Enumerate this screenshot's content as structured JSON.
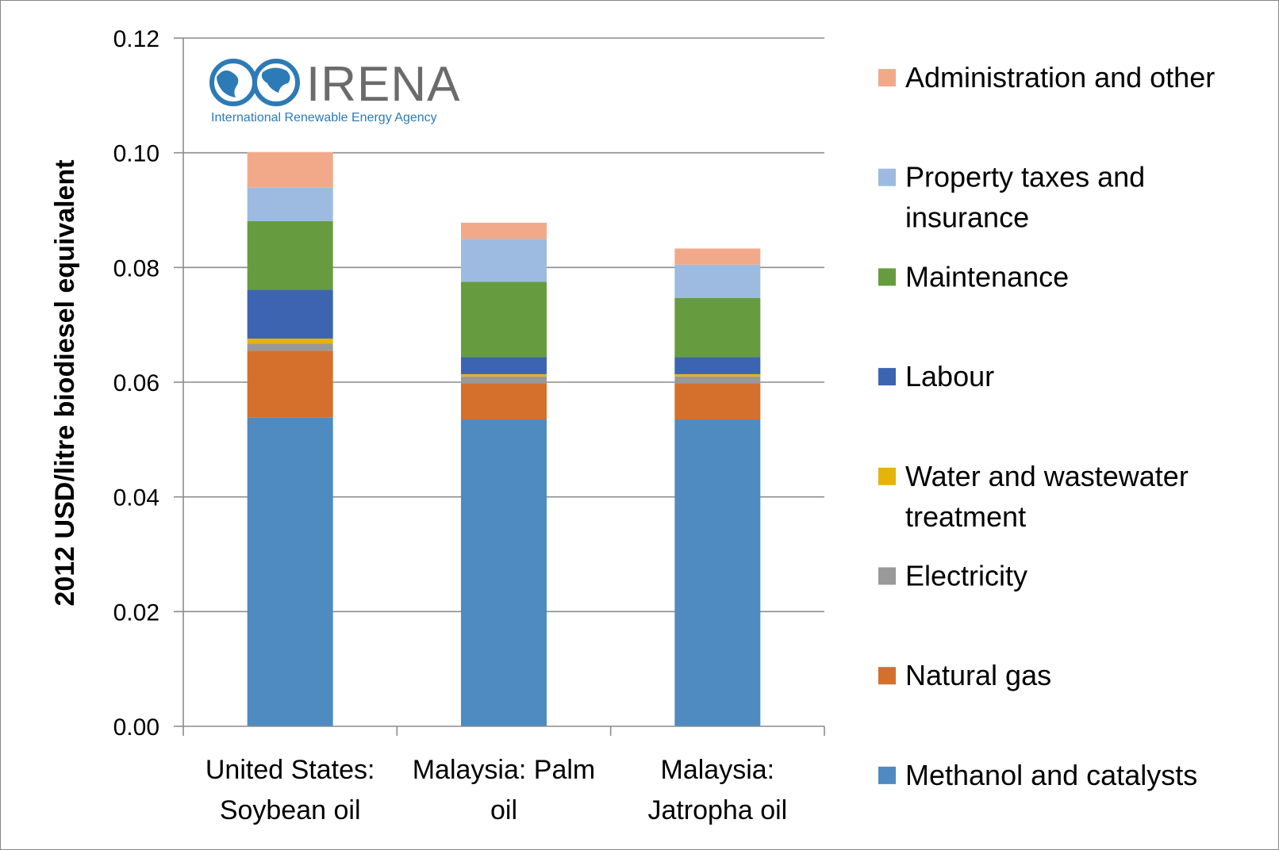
{
  "logo": {
    "name": "IRENA",
    "subtitle": "International Renewable Energy Agency",
    "color": "#2c7bb6"
  },
  "chart_data": {
    "type": "bar",
    "stacked": true,
    "title": "",
    "xlabel": "",
    "ylabel": "2012 USD/litre biodiesel equivalent",
    "ylim": [
      0,
      0.12
    ],
    "yticks": [
      "0.00",
      "0.02",
      "0.04",
      "0.06",
      "0.08",
      "0.10",
      "0.12"
    ],
    "grid": true,
    "legend_position": "right",
    "categories": [
      [
        "United States:",
        "Soybean oil"
      ],
      [
        "Malaysia: Palm",
        "oil"
      ],
      [
        "Malaysia:",
        "Jatropha oil"
      ]
    ],
    "series": [
      {
        "name": "Methanol and catalysts",
        "label_lines": [
          "Methanol and catalysts"
        ],
        "color": "#4f8ac0",
        "values": [
          0.0538,
          0.0535,
          0.0535
        ]
      },
      {
        "name": "Natural gas",
        "label_lines": [
          "Natural gas"
        ],
        "color": "#d4702b",
        "values": [
          0.0117,
          0.0063,
          0.0063
        ]
      },
      {
        "name": "Electricity",
        "label_lines": [
          "Electricity"
        ],
        "color": "#999999",
        "values": [
          0.0012,
          0.0012,
          0.0012
        ]
      },
      {
        "name": "Water and wastewater treatment",
        "label_lines": [
          "Water and wastewater",
          "treatment"
        ],
        "color": "#e6b30a",
        "values": [
          0.0009,
          0.0004,
          0.0004
        ]
      },
      {
        "name": "Labour",
        "label_lines": [
          "Labour"
        ],
        "color": "#3d64b0",
        "values": [
          0.0085,
          0.003,
          0.003
        ]
      },
      {
        "name": "Maintenance",
        "label_lines": [
          "Maintenance"
        ],
        "color": "#669c3f",
        "values": [
          0.012,
          0.0131,
          0.0103
        ]
      },
      {
        "name": "Property taxes and insurance",
        "label_lines": [
          "Property taxes and",
          "insurance"
        ],
        "color": "#9dbbe0",
        "values": [
          0.0058,
          0.0075,
          0.0058
        ]
      },
      {
        "name": "Administration and other",
        "label_lines": [
          "Administration and other"
        ],
        "color": "#f2a98a",
        "values": [
          0.0062,
          0.0028,
          0.0028
        ]
      }
    ]
  }
}
